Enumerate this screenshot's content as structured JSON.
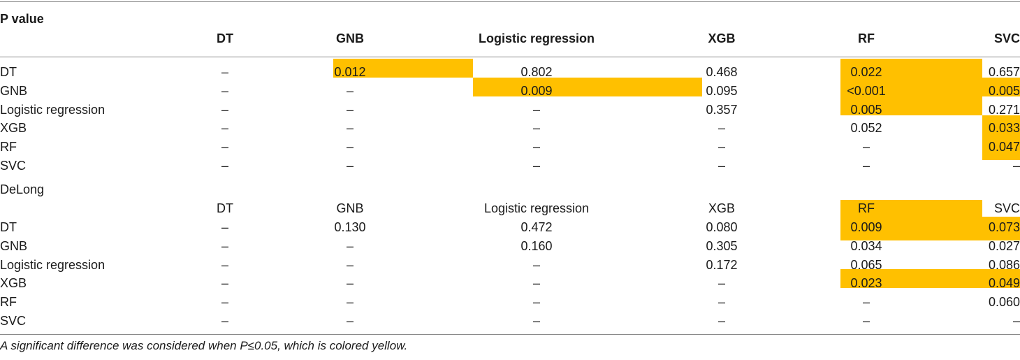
{
  "highlight_color": "#ffc000",
  "pvalue": {
    "title": "P value",
    "headers": [
      "DT",
      "GNB",
      "Logistic regression",
      "XGB",
      "RF",
      "SVC"
    ],
    "rows": [
      {
        "label": "DT",
        "cells": [
          "–",
          "0.012",
          "0.802",
          "0.468",
          "0.022",
          "0.657"
        ]
      },
      {
        "label": "GNB",
        "cells": [
          "–",
          "–",
          "0.009",
          "0.095",
          "<0.001",
          "0.005"
        ]
      },
      {
        "label": "Logistic regression",
        "cells": [
          "–",
          "–",
          "–",
          "0.357",
          "0.005",
          "0.271"
        ]
      },
      {
        "label": "XGB",
        "cells": [
          "–",
          "–",
          "–",
          "–",
          "0.052",
          "0.033"
        ]
      },
      {
        "label": "RF",
        "cells": [
          "–",
          "–",
          "–",
          "–",
          "–",
          "0.047"
        ]
      },
      {
        "label": "SVC",
        "cells": [
          "–",
          "–",
          "–",
          "–",
          "–",
          "–"
        ]
      }
    ]
  },
  "delong": {
    "title": "DeLong",
    "headers": [
      "DT",
      "GNB",
      "Logistic regression",
      "XGB",
      "RF",
      "SVC"
    ],
    "rows": [
      {
        "label": "DT",
        "cells": [
          "–",
          "0.130",
          "0.472",
          "0.080",
          "0.009",
          "0.073"
        ]
      },
      {
        "label": "GNB",
        "cells": [
          "–",
          "–",
          "0.160",
          "0.305",
          "0.034",
          "0.027"
        ]
      },
      {
        "label": "Logistic regression",
        "cells": [
          "–",
          "–",
          "–",
          "0.172",
          "0.065",
          "0.086"
        ]
      },
      {
        "label": "XGB",
        "cells": [
          "–",
          "–",
          "–",
          "–",
          "0.023",
          "0.049"
        ]
      },
      {
        "label": "RF",
        "cells": [
          "–",
          "–",
          "–",
          "–",
          "–",
          "0.060"
        ]
      },
      {
        "label": "SVC",
        "cells": [
          "–",
          "–",
          "–",
          "–",
          "–",
          "–"
        ]
      }
    ]
  },
  "footnote": "A significant difference was considered when P≤0.05, which is colored yellow."
}
